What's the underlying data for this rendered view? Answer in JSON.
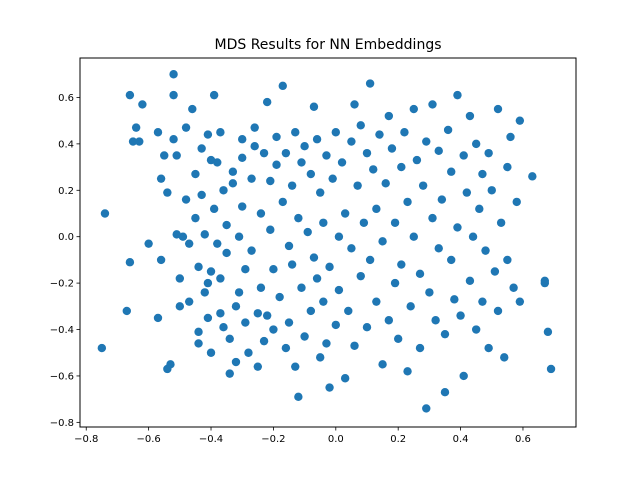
{
  "chart_data": {
    "type": "scatter",
    "title": "MDS Results for NN Embeddings",
    "xlabel": "",
    "ylabel": "",
    "xlim": [
      -0.82,
      0.77
    ],
    "ylim": [
      -0.82,
      0.77
    ],
    "xticks": [
      -0.8,
      -0.6,
      -0.4,
      -0.2,
      0.0,
      0.2,
      0.4,
      0.6
    ],
    "yticks": [
      -0.8,
      -0.6,
      -0.4,
      -0.2,
      0.0,
      0.2,
      0.4,
      0.6
    ],
    "xtick_labels": [
      "−0.8",
      "−0.6",
      "−0.4",
      "−0.2",
      "0.0",
      "0.2",
      "0.4",
      "0.6"
    ],
    "ytick_labels": [
      "−0.8",
      "−0.6",
      "−0.4",
      "−0.2",
      "0.0",
      "0.2",
      "0.4",
      "0.6"
    ],
    "grid": false,
    "marker_color": "#1f77b4",
    "series": [
      {
        "values": [
          [
            -0.75,
            -0.48
          ],
          [
            -0.74,
            0.1
          ],
          [
            -0.67,
            -0.32
          ],
          [
            -0.66,
            0.61
          ],
          [
            -0.66,
            -0.11
          ],
          [
            -0.65,
            0.41
          ],
          [
            -0.64,
            0.47
          ],
          [
            -0.63,
            0.41
          ],
          [
            -0.62,
            0.57
          ],
          [
            -0.6,
            -0.03
          ],
          [
            -0.57,
            0.45
          ],
          [
            -0.57,
            -0.35
          ],
          [
            -0.56,
            0.25
          ],
          [
            -0.56,
            -0.1
          ],
          [
            -0.55,
            0.35
          ],
          [
            -0.54,
            0.19
          ],
          [
            -0.54,
            -0.57
          ],
          [
            -0.53,
            -0.55
          ],
          [
            -0.52,
            0.7
          ],
          [
            -0.52,
            0.61
          ],
          [
            -0.52,
            0.42
          ],
          [
            -0.51,
            0.35
          ],
          [
            -0.51,
            0.01
          ],
          [
            -0.5,
            -0.18
          ],
          [
            -0.5,
            -0.3
          ],
          [
            -0.49,
            0.0
          ],
          [
            -0.48,
            0.16
          ],
          [
            -0.48,
            0.47
          ],
          [
            -0.47,
            -0.03
          ],
          [
            -0.47,
            -0.28
          ],
          [
            -0.46,
            0.55
          ],
          [
            -0.45,
            0.27
          ],
          [
            -0.45,
            0.08
          ],
          [
            -0.44,
            -0.13
          ],
          [
            -0.44,
            -0.41
          ],
          [
            -0.44,
            -0.46
          ],
          [
            -0.43,
            0.38
          ],
          [
            -0.43,
            0.18
          ],
          [
            -0.42,
            0.01
          ],
          [
            -0.42,
            -0.24
          ],
          [
            -0.41,
            -0.35
          ],
          [
            -0.41,
            0.44
          ],
          [
            -0.41,
            -0.2
          ],
          [
            -0.4,
            0.33
          ],
          [
            -0.4,
            -0.15
          ],
          [
            -0.4,
            -0.5
          ],
          [
            -0.39,
            0.61
          ],
          [
            -0.39,
            0.12
          ],
          [
            -0.38,
            0.32
          ],
          [
            -0.38,
            -0.03
          ],
          [
            -0.37,
            -0.33
          ],
          [
            -0.37,
            0.45
          ],
          [
            -0.37,
            -0.18
          ],
          [
            -0.36,
            -0.39
          ],
          [
            -0.36,
            0.2
          ],
          [
            -0.35,
            -0.07
          ],
          [
            -0.35,
            0.05
          ],
          [
            -0.34,
            -0.44
          ],
          [
            -0.34,
            -0.59
          ],
          [
            -0.33,
            0.28
          ],
          [
            -0.33,
            0.23
          ],
          [
            -0.32,
            -0.3
          ],
          [
            -0.32,
            -0.54
          ],
          [
            -0.31,
            0.0
          ],
          [
            -0.31,
            -0.24
          ],
          [
            -0.3,
            0.42
          ],
          [
            -0.3,
            0.34
          ],
          [
            -0.3,
            0.13
          ],
          [
            -0.29,
            -0.14
          ],
          [
            -0.29,
            -0.37
          ],
          [
            -0.28,
            -0.5
          ],
          [
            -0.27,
            0.25
          ],
          [
            -0.27,
            -0.06
          ],
          [
            -0.26,
            0.47
          ],
          [
            -0.26,
            0.39
          ],
          [
            -0.25,
            -0.33
          ],
          [
            -0.25,
            -0.56
          ],
          [
            -0.24,
            0.1
          ],
          [
            -0.24,
            -0.22
          ],
          [
            -0.23,
            0.36
          ],
          [
            -0.23,
            -0.45
          ],
          [
            -0.22,
            0.58
          ],
          [
            -0.22,
            -0.34
          ],
          [
            -0.21,
            0.03
          ],
          [
            -0.21,
            0.24
          ],
          [
            -0.2,
            -0.14
          ],
          [
            -0.2,
            -0.4
          ],
          [
            -0.19,
            0.43
          ],
          [
            -0.19,
            0.31
          ],
          [
            -0.18,
            -0.26
          ],
          [
            -0.17,
            0.65
          ],
          [
            -0.17,
            0.15
          ],
          [
            -0.16,
            -0.48
          ],
          [
            -0.16,
            0.36
          ],
          [
            -0.15,
            -0.04
          ],
          [
            -0.15,
            -0.37
          ],
          [
            -0.14,
            0.22
          ],
          [
            -0.14,
            -0.12
          ],
          [
            -0.13,
            0.45
          ],
          [
            -0.13,
            -0.56
          ],
          [
            -0.12,
            -0.69
          ],
          [
            -0.12,
            0.08
          ],
          [
            -0.11,
            0.32
          ],
          [
            -0.11,
            -0.22
          ],
          [
            -0.1,
            0.39
          ],
          [
            -0.1,
            -0.43
          ],
          [
            -0.09,
            0.02
          ],
          [
            -0.08,
            -0.32
          ],
          [
            -0.08,
            0.27
          ],
          [
            -0.07,
            -0.09
          ],
          [
            -0.07,
            0.56
          ],
          [
            -0.06,
            0.42
          ],
          [
            -0.06,
            -0.18
          ],
          [
            -0.05,
            0.19
          ],
          [
            -0.05,
            -0.52
          ],
          [
            -0.04,
            -0.28
          ],
          [
            -0.04,
            0.06
          ],
          [
            -0.03,
            0.35
          ],
          [
            -0.03,
            -0.46
          ],
          [
            -0.02,
            -0.65
          ],
          [
            -0.02,
            -0.13
          ],
          [
            -0.01,
            0.25
          ],
          [
            0.0,
            0.45
          ],
          [
            0.0,
            -0.38
          ],
          [
            0.01,
            0.0
          ],
          [
            0.01,
            -0.23
          ],
          [
            0.02,
            0.32
          ],
          [
            0.03,
            -0.61
          ],
          [
            0.03,
            0.1
          ],
          [
            0.04,
            -0.32
          ],
          [
            0.05,
            0.41
          ],
          [
            0.05,
            -0.05
          ],
          [
            0.06,
            0.57
          ],
          [
            0.06,
            -0.47
          ],
          [
            0.07,
            0.22
          ],
          [
            0.08,
            -0.17
          ],
          [
            0.08,
            0.48
          ],
          [
            0.09,
            0.06
          ],
          [
            0.1,
            0.36
          ],
          [
            0.1,
            -0.39
          ],
          [
            0.11,
            0.66
          ],
          [
            0.11,
            -0.1
          ],
          [
            0.12,
            0.29
          ],
          [
            0.13,
            -0.28
          ],
          [
            0.13,
            0.12
          ],
          [
            0.14,
            0.44
          ],
          [
            0.15,
            -0.55
          ],
          [
            0.15,
            -0.02
          ],
          [
            0.16,
            0.23
          ],
          [
            0.17,
            -0.36
          ],
          [
            0.17,
            0.52
          ],
          [
            0.18,
            0.38
          ],
          [
            0.19,
            -0.2
          ],
          [
            0.19,
            0.06
          ],
          [
            0.2,
            -0.44
          ],
          [
            0.21,
            0.3
          ],
          [
            0.21,
            -0.12
          ],
          [
            0.22,
            0.45
          ],
          [
            0.23,
            0.15
          ],
          [
            0.23,
            -0.58
          ],
          [
            0.24,
            -0.3
          ],
          [
            0.25,
            0.55
          ],
          [
            0.25,
            0.0
          ],
          [
            0.26,
            0.33
          ],
          [
            0.27,
            -0.48
          ],
          [
            0.27,
            -0.16
          ],
          [
            0.28,
            0.22
          ],
          [
            0.29,
            0.41
          ],
          [
            0.29,
            -0.74
          ],
          [
            0.3,
            -0.24
          ],
          [
            0.31,
            0.08
          ],
          [
            0.31,
            0.57
          ],
          [
            0.32,
            -0.36
          ],
          [
            0.33,
            0.37
          ],
          [
            0.33,
            -0.05
          ],
          [
            0.34,
            0.16
          ],
          [
            0.35,
            -0.67
          ],
          [
            0.35,
            -0.42
          ],
          [
            0.36,
            0.46
          ],
          [
            0.37,
            -0.1
          ],
          [
            0.37,
            0.28
          ],
          [
            0.38,
            -0.27
          ],
          [
            0.39,
            0.04
          ],
          [
            0.39,
            0.61
          ],
          [
            0.4,
            -0.34
          ],
          [
            0.41,
            0.35
          ],
          [
            0.41,
            -0.6
          ],
          [
            0.42,
            0.19
          ],
          [
            0.43,
            -0.19
          ],
          [
            0.43,
            0.52
          ],
          [
            0.44,
            0.0
          ],
          [
            0.45,
            -0.4
          ],
          [
            0.45,
            0.4
          ],
          [
            0.46,
            0.12
          ],
          [
            0.47,
            -0.28
          ],
          [
            0.47,
            0.27
          ],
          [
            0.48,
            -0.06
          ],
          [
            0.49,
            0.36
          ],
          [
            0.49,
            -0.48
          ],
          [
            0.5,
            0.2
          ],
          [
            0.51,
            -0.15
          ],
          [
            0.52,
            0.55
          ],
          [
            0.52,
            -0.32
          ],
          [
            0.53,
            0.06
          ],
          [
            0.54,
            -0.52
          ],
          [
            0.55,
            0.3
          ],
          [
            0.55,
            -0.1
          ],
          [
            0.56,
            0.43
          ],
          [
            0.57,
            -0.22
          ],
          [
            0.58,
            0.15
          ],
          [
            0.59,
            0.5
          ],
          [
            0.59,
            -0.28
          ],
          [
            0.63,
            0.26
          ],
          [
            0.67,
            -0.2
          ],
          [
            0.67,
            -0.19
          ],
          [
            0.68,
            -0.41
          ],
          [
            0.69,
            -0.57
          ]
        ]
      }
    ]
  }
}
